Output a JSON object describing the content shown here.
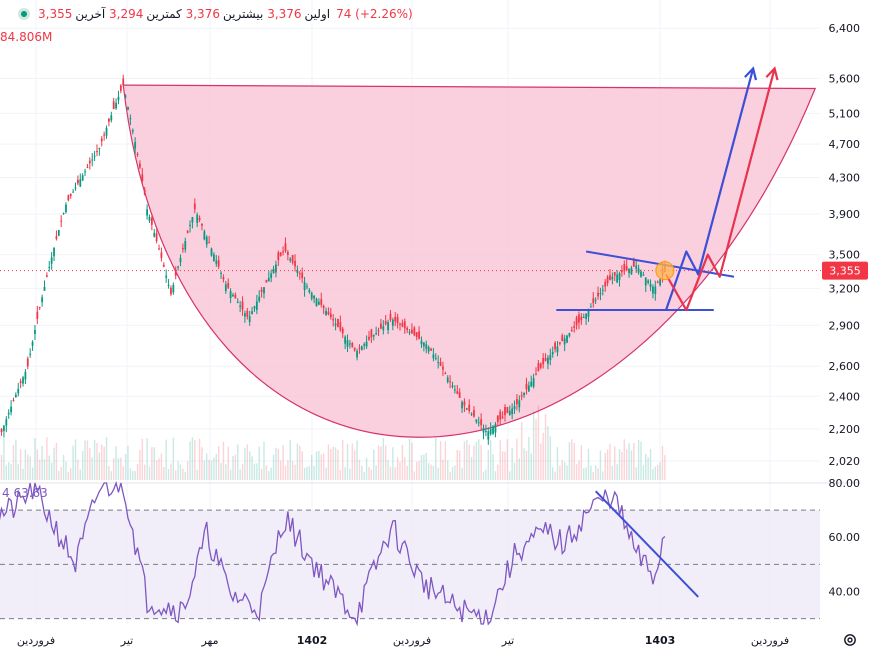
{
  "header": {
    "ohlc": [
      {
        "label": "اولین",
        "value": "3,376"
      },
      {
        "label": "بیشترین",
        "value": "3,376"
      },
      {
        "label": "کمترین",
        "value": "3,294"
      },
      {
        "label": "آخرین",
        "value": "3,355"
      }
    ],
    "change": "74 (+2.26%)",
    "volume": "84.806M"
  },
  "rsi": {
    "label": "4  63.63"
  },
  "colors": {
    "up": "#089981",
    "down": "#f23645",
    "cup_fill": "#f9c7d8",
    "cup_stroke": "#d6336c",
    "rsi_line": "#7e57c2",
    "rsi_band": "#ede7f6",
    "trend_blue": "#3d4fd6",
    "trend_red": "#e8334f"
  },
  "chart_data": [
    {
      "type": "candlestick",
      "title": "",
      "price_axis": [
        {
          "label": "6,400",
          "value": 6400
        },
        {
          "label": "5,600",
          "value": 5600
        },
        {
          "label": "5,100",
          "value": 5100
        },
        {
          "label": "4,700",
          "value": 4700
        },
        {
          "label": "4,300",
          "value": 4300
        },
        {
          "label": "3,900",
          "value": 3900
        },
        {
          "label": "3,500",
          "value": 3500
        },
        {
          "label": "3,200",
          "value": 3200
        },
        {
          "label": "2,900",
          "value": 2900
        },
        {
          "label": "2,600",
          "value": 2600
        },
        {
          "label": "2,400",
          "value": 2400
        },
        {
          "label": "2,200",
          "value": 2200
        },
        {
          "label": "2,020",
          "value": 2020
        }
      ],
      "y_scale": "log",
      "ylim": [
        1920,
        6900
      ],
      "last_price": {
        "label": "3,355",
        "value": 3355
      },
      "time_axis": [
        "فروردین",
        "تیر",
        "مهر",
        "1402",
        "فروردین",
        "تیر",
        "1403",
        "فروردین"
      ],
      "bold_time_labels": [
        "1402",
        "1403"
      ],
      "anchors": [
        {
          "day": 0,
          "price": 2030
        },
        {
          "day": 30,
          "price": 2600
        },
        {
          "day": 62,
          "price": 4000
        },
        {
          "day": 90,
          "price": 4650
        },
        {
          "day": 110,
          "price": 5500
        },
        {
          "day": 130,
          "price": 3950
        },
        {
          "day": 150,
          "price": 3150
        },
        {
          "day": 170,
          "price": 3950
        },
        {
          "day": 195,
          "price": 3250
        },
        {
          "day": 215,
          "price": 2950
        },
        {
          "day": 245,
          "price": 3550
        },
        {
          "day": 265,
          "price": 3200
        },
        {
          "day": 285,
          "price": 2950
        },
        {
          "day": 305,
          "price": 2700
        },
        {
          "day": 335,
          "price": 2950
        },
        {
          "day": 365,
          "price": 2750
        },
        {
          "day": 395,
          "price": 2350
        },
        {
          "day": 415,
          "price": 2180
        },
        {
          "day": 440,
          "price": 2350
        },
        {
          "day": 465,
          "price": 2650
        },
        {
          "day": 495,
          "price": 2950
        },
        {
          "day": 520,
          "price": 3300
        },
        {
          "day": 540,
          "price": 3400
        },
        {
          "day": 555,
          "price": 3200
        },
        {
          "day": 565,
          "price": 3355
        }
      ],
      "drawings": {
        "cup": {
          "start": {
            "day": 110,
            "price": 5500
          },
          "bottom": {
            "day": 415,
            "price": 2170
          },
          "end": {
            "day": 690,
            "price": 5450
          }
        },
        "channel_top": [
          {
            "day": 498,
            "price": 3530
          },
          {
            "day": 622,
            "price": 3300
          }
        ],
        "channel_bottom": [
          {
            "day": 473,
            "price": 3020
          },
          {
            "day": 605,
            "price": 3020
          }
        ],
        "blue_path": [
          {
            "day": 565,
            "price": 3020
          },
          {
            "day": 582,
            "price": 3530
          },
          {
            "day": 592,
            "price": 3320
          },
          {
            "day": 638,
            "price": 5750
          }
        ],
        "red_path": [
          {
            "day": 565,
            "price": 3320
          },
          {
            "day": 582,
            "price": 3020
          },
          {
            "day": 600,
            "price": 3500
          },
          {
            "day": 610,
            "price": 3300
          },
          {
            "day": 656,
            "price": 5750
          }
        ],
        "marker": {
          "day": 564,
          "price": 3355
        }
      }
    },
    {
      "type": "line",
      "title": "",
      "ylim": [
        28,
        80
      ],
      "axis": [
        {
          "label": "80.00",
          "value": 80
        },
        {
          "label": "60.00",
          "value": 60
        },
        {
          "label": "40.00",
          "value": 40
        }
      ],
      "band": [
        30,
        70
      ],
      "midline": 50,
      "last_value": 63.63,
      "anchors": [
        {
          "day": 0,
          "price": 67
        },
        {
          "day": 20,
          "price": 71
        },
        {
          "day": 35,
          "price": 78
        },
        {
          "day": 70,
          "price": 50
        },
        {
          "day": 90,
          "price": 78
        },
        {
          "day": 110,
          "price": 80
        },
        {
          "day": 130,
          "price": 37
        },
        {
          "day": 160,
          "price": 33
        },
        {
          "day": 180,
          "price": 61
        },
        {
          "day": 200,
          "price": 39
        },
        {
          "day": 225,
          "price": 34
        },
        {
          "day": 245,
          "price": 68
        },
        {
          "day": 262,
          "price": 55
        },
        {
          "day": 285,
          "price": 41
        },
        {
          "day": 305,
          "price": 31
        },
        {
          "day": 335,
          "price": 64
        },
        {
          "day": 360,
          "price": 44
        },
        {
          "day": 385,
          "price": 35
        },
        {
          "day": 400,
          "price": 32
        },
        {
          "day": 415,
          "price": 30
        },
        {
          "day": 440,
          "price": 55
        },
        {
          "day": 465,
          "price": 62
        },
        {
          "day": 480,
          "price": 57
        },
        {
          "day": 500,
          "price": 70
        },
        {
          "day": 520,
          "price": 76
        },
        {
          "day": 540,
          "price": 54
        },
        {
          "day": 555,
          "price": 45
        },
        {
          "day": 565,
          "price": 63.63
        }
      ],
      "trend": [
        {
          "day": 506,
          "price": 77
        },
        {
          "day": 592,
          "price": 38
        }
      ]
    }
  ]
}
